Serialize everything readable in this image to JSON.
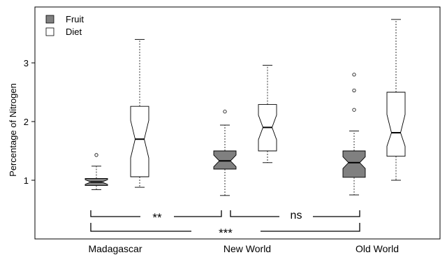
{
  "chart_data": {
    "type": "box",
    "title": "",
    "xlabel": "",
    "ylabel": "Percentage of Nitrogen",
    "ylim": [
      0.0,
      4.0
    ],
    "y_ticks": [
      "1",
      "2",
      "3"
    ],
    "categories": [
      "Madagascar",
      "New World",
      "Old World"
    ],
    "legend": {
      "position": "top-left",
      "entries": [
        "Fruit",
        "Diet"
      ]
    },
    "colors": {
      "fruit_fill": "#808080",
      "diet_fill": "#ffffff",
      "stroke": "#000000"
    },
    "boxes": [
      {
        "group": "Madagascar",
        "series": "Fruit",
        "whisker_low": 0.84,
        "q1": 0.91,
        "median": 0.97,
        "q3": 1.03,
        "whisker_high": 1.24,
        "notch_low": 0.93,
        "notch_high": 1.01,
        "outliers": [
          1.43
        ]
      },
      {
        "group": "Madagascar",
        "series": "Diet",
        "whisker_low": 0.88,
        "q1": 1.06,
        "median": 1.7,
        "q3": 2.26,
        "whisker_high": 3.4,
        "notch_low": 1.38,
        "notch_high": 2.02,
        "outliers": []
      },
      {
        "group": "New World",
        "series": "Fruit",
        "whisker_low": 0.74,
        "q1": 1.19,
        "median": 1.33,
        "q3": 1.5,
        "whisker_high": 1.94,
        "notch_low": 1.23,
        "notch_high": 1.43,
        "outliers": [
          2.17
        ]
      },
      {
        "group": "New World",
        "series": "Diet",
        "whisker_low": 1.3,
        "q1": 1.5,
        "median": 1.9,
        "q3": 2.29,
        "whisker_high": 2.96,
        "notch_low": 1.69,
        "notch_high": 2.11,
        "outliers": []
      },
      {
        "group": "Old World",
        "series": "Fruit",
        "whisker_low": 0.75,
        "q1": 1.05,
        "median": 1.3,
        "q3": 1.5,
        "whisker_high": 1.84,
        "notch_low": 1.2,
        "notch_high": 1.4,
        "outliers": [
          2.2,
          2.53,
          2.8
        ]
      },
      {
        "group": "Old World",
        "series": "Diet",
        "whisker_low": 1.0,
        "q1": 1.41,
        "median": 1.81,
        "q3": 2.5,
        "whisker_high": 3.74,
        "notch_low": 1.58,
        "notch_high": 2.12,
        "outliers": []
      }
    ],
    "significance": [
      {
        "from": "Madagascar",
        "to": "New World",
        "label": "**"
      },
      {
        "from": "New World",
        "to": "Old World",
        "label": "ns"
      },
      {
        "from": "Madagascar",
        "to": "Old World",
        "label": "***"
      }
    ]
  }
}
